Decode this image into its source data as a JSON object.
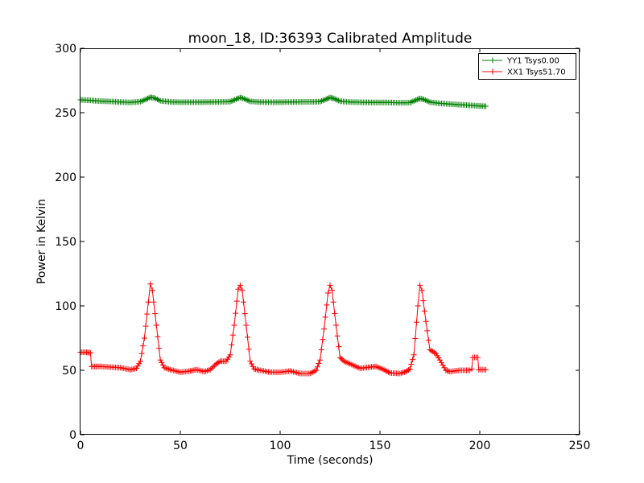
{
  "chart_data": {
    "type": "line",
    "title": "moon_18, ID:36393 Calibrated Amplitude",
    "xlabel": "Time (seconds)",
    "ylabel": "Power in Kelvin",
    "xlim": [
      0,
      250
    ],
    "ylim": [
      0,
      300
    ],
    "xticks": [
      "0",
      "50",
      "100",
      "150",
      "200",
      "250"
    ],
    "yticks": [
      "0",
      "50",
      "100",
      "150",
      "200",
      "250",
      "300"
    ],
    "grid": false,
    "legend_position": "top-right",
    "series": [
      {
        "name": "YY1 Tsys0.00",
        "color": "#008000",
        "marker": "plus",
        "points": [
          [
            0,
            260
          ],
          [
            5,
            259.5
          ],
          [
            10,
            259
          ],
          [
            15,
            258.7
          ],
          [
            20,
            258.3
          ],
          [
            25,
            258
          ],
          [
            30,
            258.6
          ],
          [
            33,
            260.5
          ],
          [
            35,
            262
          ],
          [
            37,
            261.5
          ],
          [
            40,
            259.2
          ],
          [
            45,
            258.4
          ],
          [
            50,
            258.2
          ],
          [
            55,
            258.2
          ],
          [
            60,
            258.2
          ],
          [
            65,
            258.3
          ],
          [
            70,
            258.4
          ],
          [
            75,
            258.6
          ],
          [
            78,
            260.5
          ],
          [
            80,
            261.8
          ],
          [
            82,
            260.8
          ],
          [
            85,
            258.8
          ],
          [
            90,
            258.3
          ],
          [
            95,
            258.2
          ],
          [
            100,
            258.2
          ],
          [
            105,
            258.3
          ],
          [
            110,
            258.4
          ],
          [
            115,
            258.4
          ],
          [
            120,
            258.6
          ],
          [
            123,
            260.5
          ],
          [
            125,
            261.8
          ],
          [
            127,
            261
          ],
          [
            130,
            258.9
          ],
          [
            135,
            258.3
          ],
          [
            140,
            258.1
          ],
          [
            145,
            258
          ],
          [
            150,
            258
          ],
          [
            155,
            257.9
          ],
          [
            160,
            257.7
          ],
          [
            165,
            257.8
          ],
          [
            168,
            259.8
          ],
          [
            170,
            261
          ],
          [
            172,
            260.3
          ],
          [
            175,
            258.2
          ],
          [
            180,
            257.3
          ],
          [
            185,
            256.7
          ],
          [
            190,
            256.2
          ],
          [
            195,
            255.8
          ],
          [
            200,
            255.2
          ],
          [
            203,
            255
          ]
        ]
      },
      {
        "name": "XX1 Tsys51.70",
        "color": "#ff0000",
        "marker": "plus",
        "points": [
          [
            0,
            64
          ],
          [
            3,
            64
          ],
          [
            5,
            63.5
          ],
          [
            5.5,
            53
          ],
          [
            10,
            53
          ],
          [
            15,
            52.5
          ],
          [
            20,
            52
          ],
          [
            25,
            50.5
          ],
          [
            28,
            51.5
          ],
          [
            30,
            57
          ],
          [
            32,
            75
          ],
          [
            34,
            103
          ],
          [
            35,
            117
          ],
          [
            36,
            112
          ],
          [
            38,
            85
          ],
          [
            40,
            58
          ],
          [
            42,
            52
          ],
          [
            45,
            50.5
          ],
          [
            50,
            48.5
          ],
          [
            55,
            49.5
          ],
          [
            58,
            50.5
          ],
          [
            62,
            49
          ],
          [
            65,
            50.5
          ],
          [
            68,
            55
          ],
          [
            70,
            57
          ],
          [
            73,
            57
          ],
          [
            75,
            62
          ],
          [
            77,
            85
          ],
          [
            79,
            113
          ],
          [
            80,
            116
          ],
          [
            81,
            112
          ],
          [
            83,
            85
          ],
          [
            85,
            57
          ],
          [
            87,
            51
          ],
          [
            90,
            50
          ],
          [
            95,
            48.5
          ],
          [
            100,
            48.5
          ],
          [
            105,
            49.5
          ],
          [
            110,
            47.5
          ],
          [
            115,
            47.5
          ],
          [
            118,
            50
          ],
          [
            120,
            58
          ],
          [
            122,
            82
          ],
          [
            124,
            110
          ],
          [
            125,
            116
          ],
          [
            126,
            112
          ],
          [
            128,
            85
          ],
          [
            130,
            60
          ],
          [
            132,
            57
          ],
          [
            135,
            55
          ],
          [
            140,
            51.5
          ],
          [
            145,
            52.5
          ],
          [
            148,
            53
          ],
          [
            152,
            50.5
          ],
          [
            155,
            48
          ],
          [
            160,
            47.5
          ],
          [
            163,
            49
          ],
          [
            165,
            51
          ],
          [
            167,
            62
          ],
          [
            169,
            100
          ],
          [
            170,
            116
          ],
          [
            171,
            112
          ],
          [
            173,
            88
          ],
          [
            175,
            66
          ],
          [
            178,
            63
          ],
          [
            180,
            58
          ],
          [
            183,
            50
          ],
          [
            185,
            49
          ],
          [
            190,
            50
          ],
          [
            195,
            50
          ],
          [
            196,
            51
          ],
          [
            196.5,
            60
          ],
          [
            199,
            60
          ],
          [
            199.5,
            50.5
          ],
          [
            203,
            50.5
          ]
        ]
      }
    ]
  }
}
